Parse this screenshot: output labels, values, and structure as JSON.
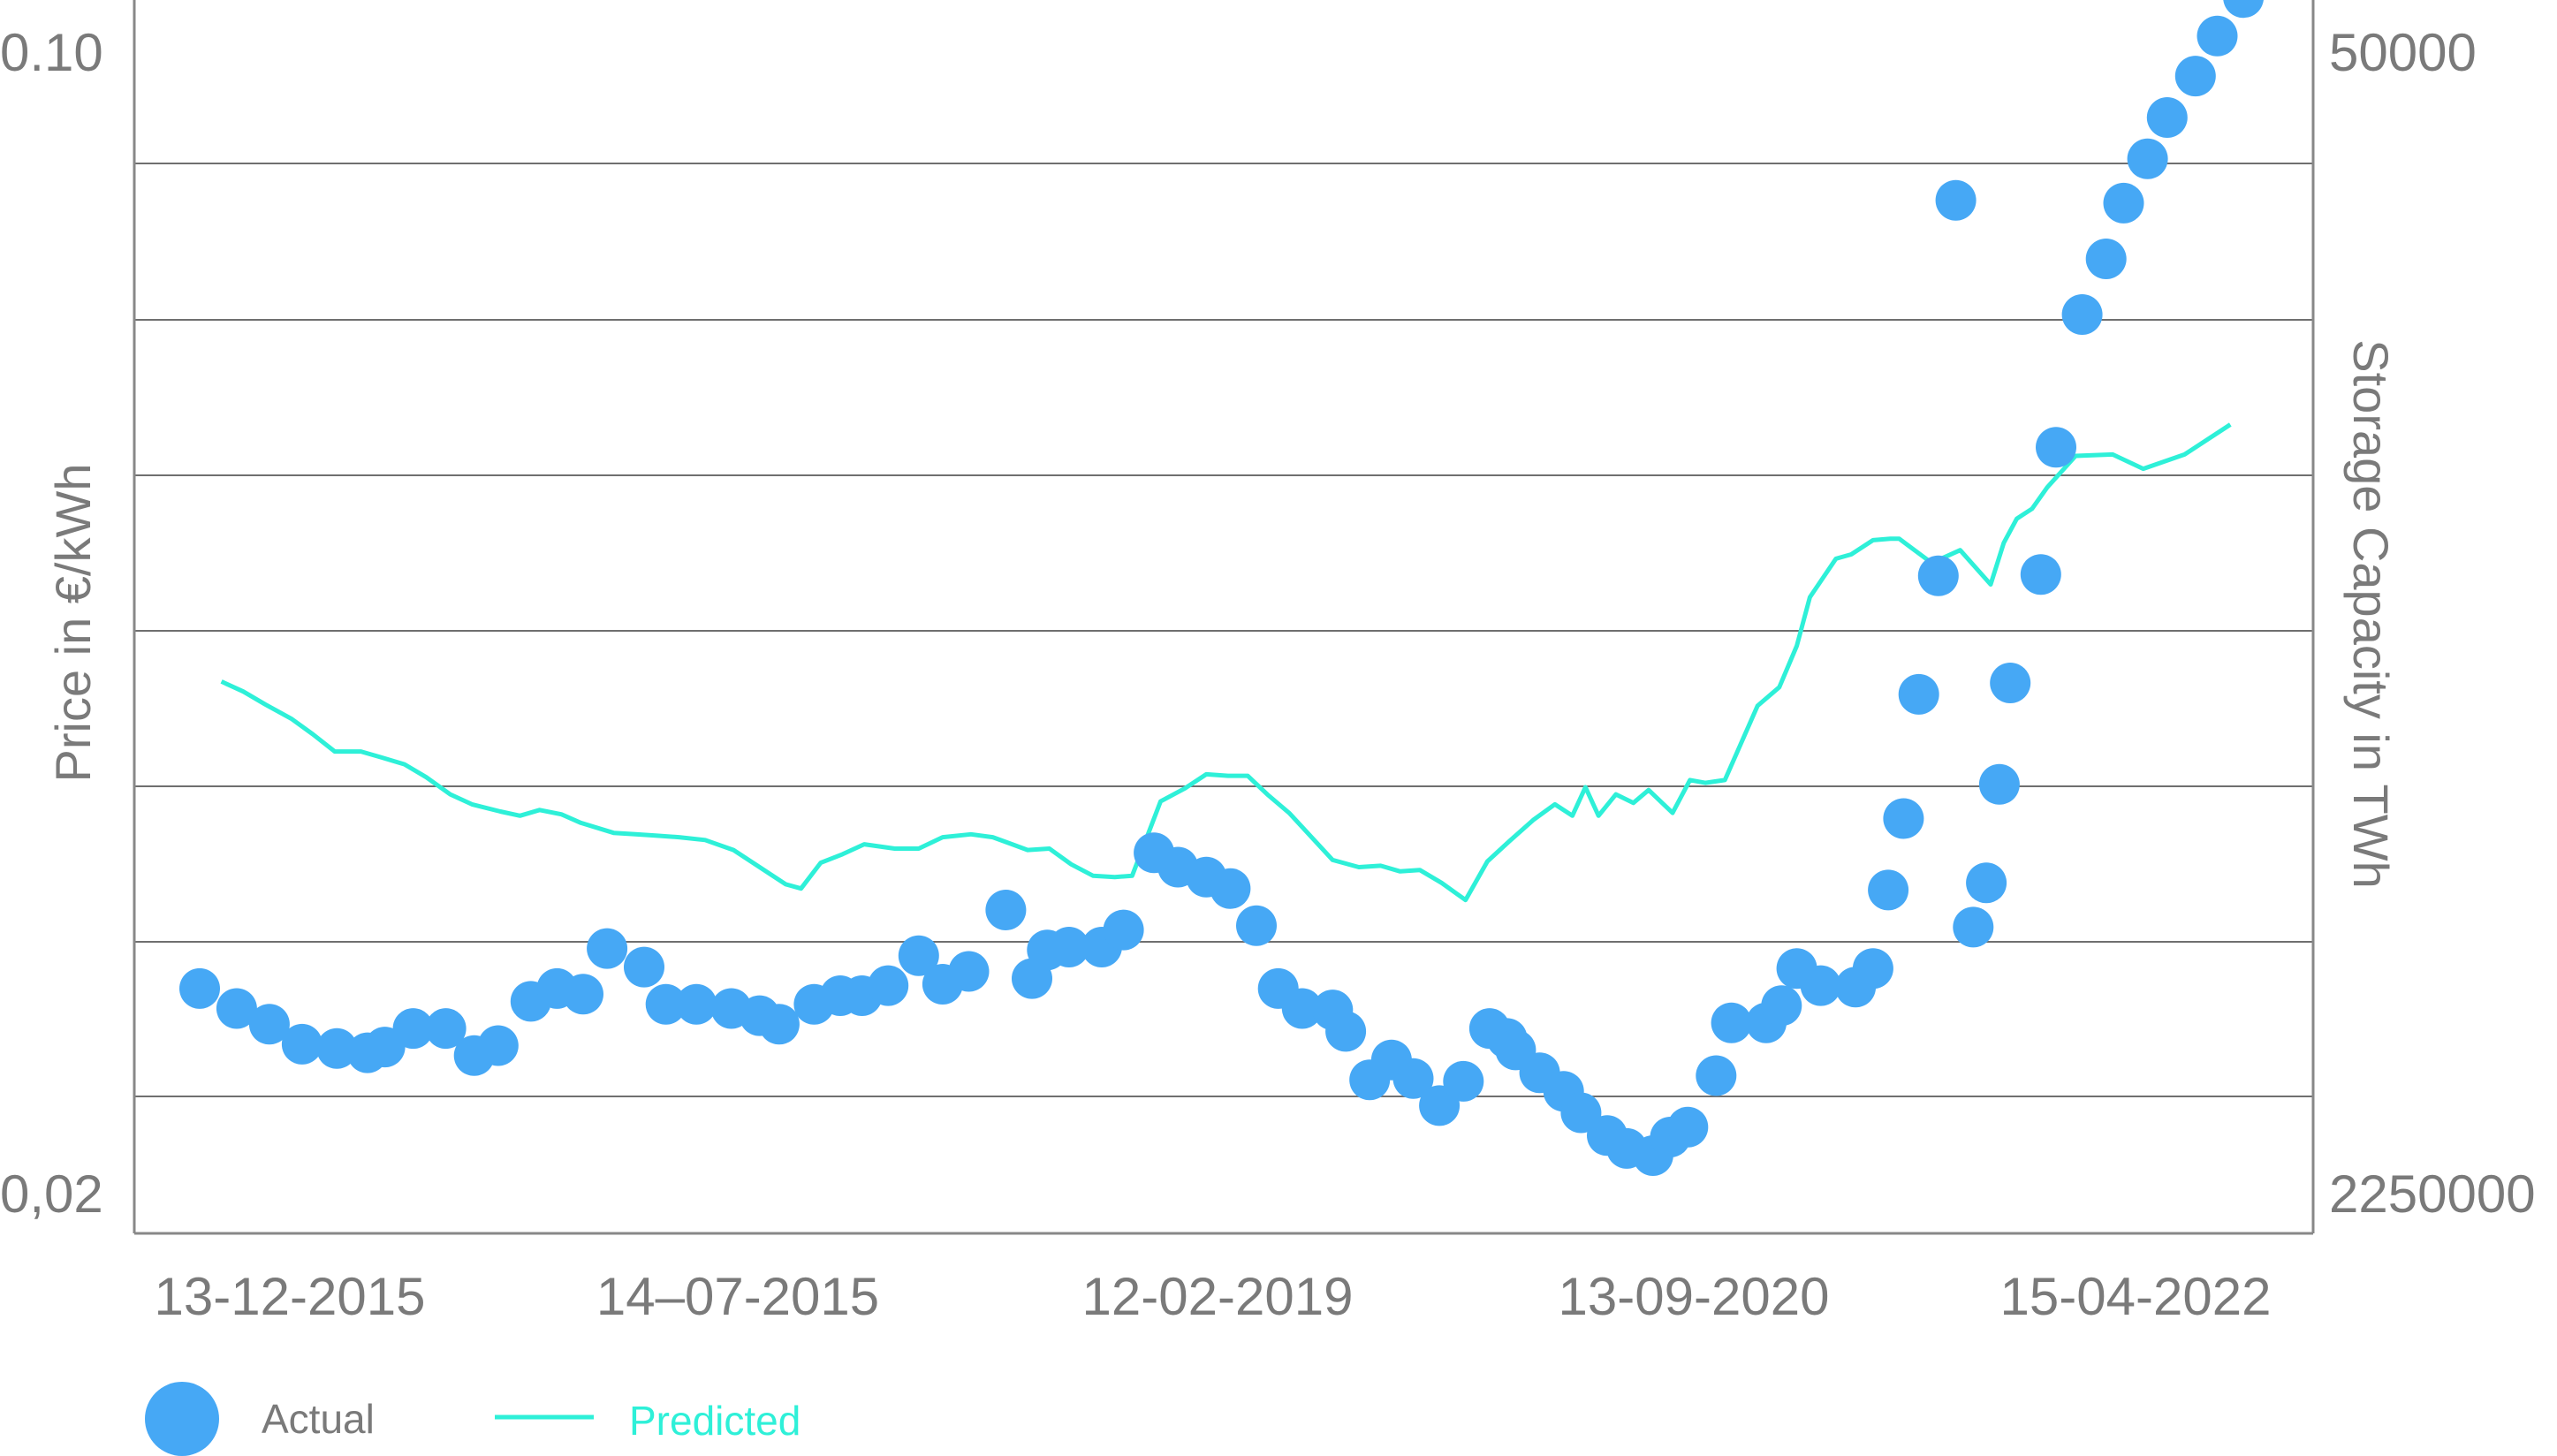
{
  "chart_data": {
    "type": "scatter",
    "y_left_label": "Price in €/kWh",
    "y_right_label": "Storage Capacity in TWh",
    "y_left_ticks": [
      "0.10",
      "0,02"
    ],
    "y_right_ticks": [
      "50000",
      "2250000"
    ],
    "y_left_range": [
      0.02,
      0.1
    ],
    "x_tick_labels": [
      "13-12-2015",
      "14–07-2015",
      "12-02-2019",
      "13-09-2020",
      "15-04-2022"
    ],
    "grid": "horizontal",
    "legend_position": "bottom-left",
    "colors": {
      "actual": "#46a8f5",
      "predicted": "#2ef0d8",
      "grid": "#6f6f6f",
      "axis": "#888888",
      "text": "#7a7a7a"
    },
    "series": [
      {
        "name": "Actual",
        "kind": "scatter",
        "x": [
          0.03,
          0.047,
          0.062,
          0.077,
          0.093,
          0.107,
          0.115,
          0.128,
          0.143,
          0.156,
          0.167,
          0.182,
          0.194,
          0.206,
          0.217,
          0.234,
          0.244,
          0.258,
          0.274,
          0.287,
          0.296,
          0.312,
          0.324,
          0.334,
          0.346,
          0.36,
          0.371,
          0.383,
          0.4,
          0.412,
          0.419,
          0.429,
          0.444,
          0.454,
          0.468,
          0.479,
          0.492,
          0.503,
          0.515,
          0.525,
          0.536,
          0.55,
          0.556,
          0.567,
          0.577,
          0.587,
          0.599,
          0.61,
          0.622,
          0.63,
          0.634,
          0.645,
          0.656,
          0.664,
          0.676,
          0.685,
          0.697,
          0.705,
          0.713,
          0.726,
          0.733,
          0.749,
          0.756,
          0.763,
          0.774,
          0.79,
          0.798,
          0.805,
          0.812,
          0.819,
          0.828,
          0.836,
          0.844,
          0.85,
          0.856,
          0.861,
          0.875,
          0.882,
          0.894,
          0.905,
          0.913,
          0.924,
          0.933,
          0.946,
          0.956,
          0.968
        ],
        "values": [
          0.0343,
          0.0329,
          0.0318,
          0.0304,
          0.0301,
          0.0298,
          0.0302,
          0.0315,
          0.0315,
          0.0296,
          0.0303,
          0.0334,
          0.0343,
          0.0339,
          0.0371,
          0.0358,
          0.0332,
          0.0332,
          0.0329,
          0.0324,
          0.0318,
          0.0332,
          0.0338,
          0.0338,
          0.0345,
          0.0366,
          0.0346,
          0.0355,
          0.0398,
          0.035,
          0.037,
          0.0372,
          0.0372,
          0.0384,
          0.0438,
          0.0428,
          0.0421,
          0.0413,
          0.0387,
          0.0343,
          0.0329,
          0.0328,
          0.0313,
          0.0279,
          0.0293,
          0.028,
          0.0261,
          0.0278,
          0.0315,
          0.0308,
          0.03,
          0.0284,
          0.0271,
          0.0256,
          0.024,
          0.0231,
          0.0226,
          0.0239,
          0.0246,
          0.0282,
          0.0319,
          0.0319,
          0.0331,
          0.0357,
          0.0345,
          0.0344,
          0.0357,
          0.0412,
          0.0462,
          0.0549,
          0.0632,
          0.0895,
          0.0386,
          0.0417,
          0.0486,
          0.0557,
          0.0633,
          0.0722,
          0.0815,
          0.0854,
          0.0893,
          0.0924,
          0.0953,
          0.0982,
          0.101,
          0.1037
        ]
      },
      {
        "name": "Predicted",
        "kind": "line",
        "x": [
          0.04,
          0.05,
          0.06,
          0.072,
          0.082,
          0.092,
          0.104,
          0.113,
          0.124,
          0.134,
          0.145,
          0.155,
          0.168,
          0.177,
          0.186,
          0.196,
          0.205,
          0.22,
          0.23,
          0.24,
          0.25,
          0.262,
          0.275,
          0.284,
          0.292,
          0.299,
          0.306,
          0.315,
          0.325,
          0.335,
          0.349,
          0.36,
          0.371,
          0.384,
          0.394,
          0.41,
          0.42,
          0.43,
          0.44,
          0.45,
          0.458,
          0.471,
          0.482,
          0.492,
          0.502,
          0.511,
          0.52,
          0.53,
          0.55,
          0.562,
          0.572,
          0.581,
          0.59,
          0.6,
          0.611,
          0.621,
          0.631,
          0.642,
          0.652,
          0.66,
          0.666,
          0.672,
          0.68,
          0.688,
          0.695,
          0.706,
          0.714,
          0.721,
          0.73,
          0.745,
          0.755,
          0.763,
          0.769,
          0.781,
          0.788,
          0.798,
          0.806,
          0.81,
          0.825,
          0.838,
          0.852,
          0.858,
          0.864,
          0.871,
          0.878,
          0.891,
          0.908,
          0.922,
          0.941,
          0.962
        ],
        "values": [
          0.0558,
          0.0551,
          0.0542,
          0.0532,
          0.0521,
          0.0509,
          0.0509,
          0.0505,
          0.05,
          0.0491,
          0.0479,
          0.0472,
          0.0467,
          0.0464,
          0.0468,
          0.0465,
          0.0459,
          0.0452,
          0.0451,
          0.045,
          0.0449,
          0.0447,
          0.044,
          0.0431,
          0.0423,
          0.0416,
          0.0413,
          0.0431,
          0.0437,
          0.0444,
          0.0441,
          0.0441,
          0.0449,
          0.0451,
          0.0449,
          0.044,
          0.0441,
          0.043,
          0.0422,
          0.0421,
          0.0422,
          0.0474,
          0.0483,
          0.0493,
          0.0492,
          0.0492,
          0.0479,
          0.0466,
          0.0433,
          0.0428,
          0.0429,
          0.0425,
          0.0426,
          0.0417,
          0.0405,
          0.0432,
          0.0446,
          0.0461,
          0.0472,
          0.0464,
          0.0484,
          0.0464,
          0.0479,
          0.0473,
          0.0482,
          0.0466,
          0.0489,
          0.0487,
          0.0489,
          0.0541,
          0.0554,
          0.0583,
          0.0617,
          0.0644,
          0.0647,
          0.0657,
          0.0658,
          0.0658,
          0.0641,
          0.065,
          0.0626,
          0.0655,
          0.0672,
          0.0679,
          0.0694,
          0.0716,
          0.0717,
          0.0707,
          0.0717,
          0.0738
        ]
      }
    ]
  }
}
